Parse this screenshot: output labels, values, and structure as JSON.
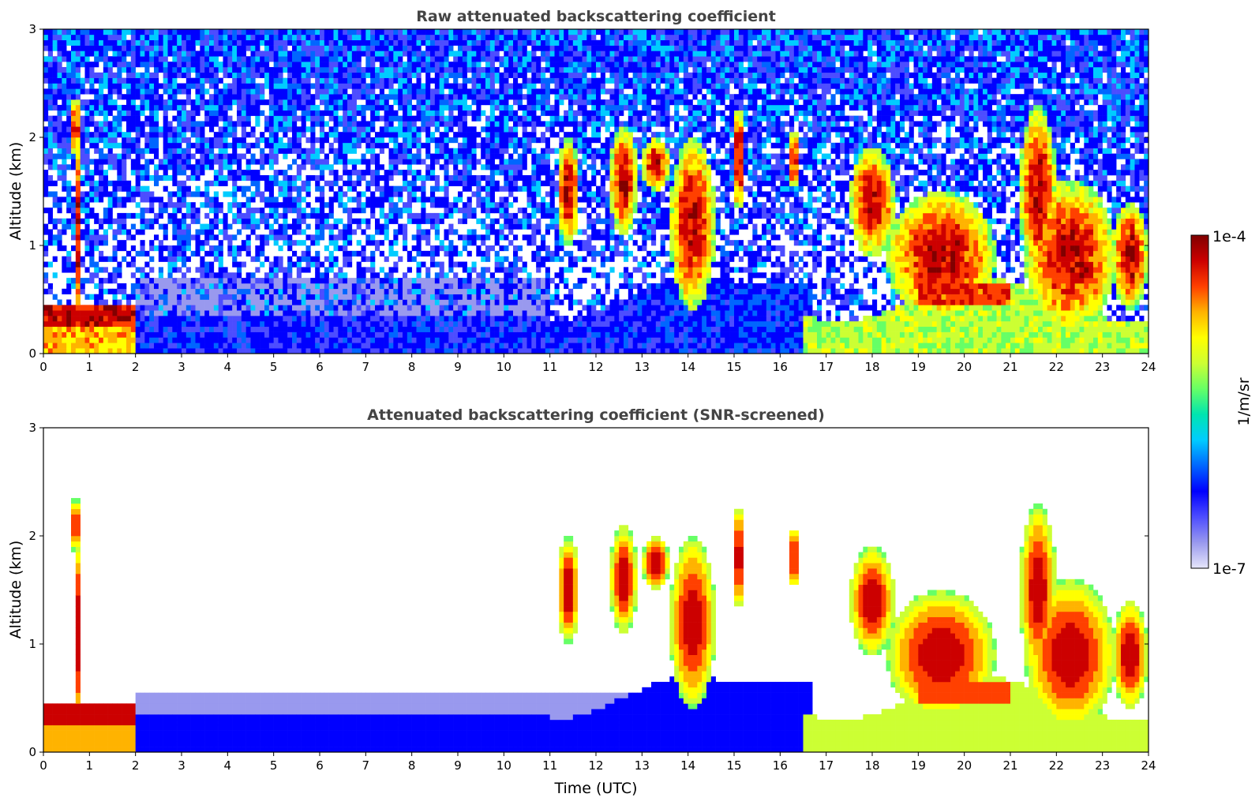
{
  "chart_data": [
    {
      "type": "heatmap",
      "title": "Raw attenuated backscattering coefficient",
      "ylabel": "Altitude (km)",
      "xlabel": "",
      "xlim": [
        0,
        24
      ],
      "ylim": [
        0,
        3
      ],
      "xticks": [
        "0",
        "1",
        "2",
        "3",
        "4",
        "5",
        "6",
        "7",
        "8",
        "9",
        "10",
        "11",
        "12",
        "13",
        "14",
        "15",
        "16",
        "17",
        "18",
        "19",
        "20",
        "21",
        "22",
        "23",
        "24"
      ],
      "yticks": [
        "0",
        "1",
        "2",
        "3"
      ],
      "grid": false,
      "screened": false
    },
    {
      "type": "heatmap",
      "title": "Attenuated backscattering coefficient (SNR-screened)",
      "ylabel": "Altitude (km)",
      "xlabel": "Time (UTC)",
      "xlim": [
        0,
        24
      ],
      "ylim": [
        0,
        3
      ],
      "xticks": [
        "0",
        "1",
        "2",
        "3",
        "4",
        "5",
        "6",
        "7",
        "8",
        "9",
        "10",
        "11",
        "12",
        "13",
        "14",
        "15",
        "16",
        "17",
        "18",
        "19",
        "20",
        "21",
        "22",
        "23",
        "24"
      ],
      "yticks": [
        "0",
        "1",
        "2",
        "3"
      ],
      "grid": false,
      "screened": true
    }
  ],
  "colorbar": {
    "label": "1/m/sr",
    "max_label": "1e-4",
    "min_label": "1e-7",
    "scale": "log",
    "range": [
      1e-07,
      0.0001
    ],
    "colors": [
      "#e6e6fa",
      "#9999ee",
      "#4d4dff",
      "#0000ff",
      "#0066ff",
      "#00ccff",
      "#00e5b0",
      "#66ff66",
      "#ccff33",
      "#ffff00",
      "#ffb300",
      "#ff4000",
      "#cc0000",
      "#800000"
    ]
  }
}
